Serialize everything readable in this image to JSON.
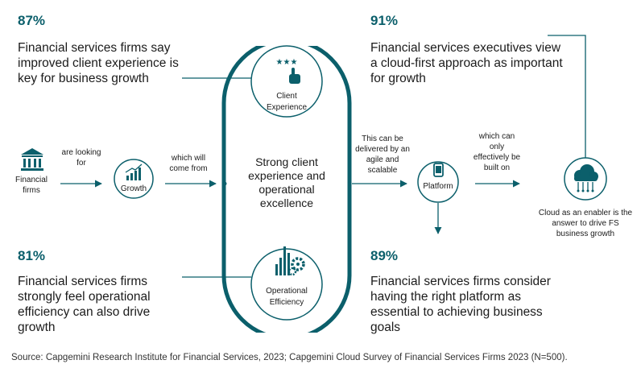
{
  "colors": {
    "accent": "#0b5f6b",
    "line": "#0b5f6b",
    "text": "#1b1b1b"
  },
  "stats": {
    "top_left": {
      "percent": "87%",
      "text": "Financial services firms say improved client experience is key for business growth"
    },
    "top_right": {
      "percent": "91%",
      "text": "Financial services executives view a cloud-first approach as important for growth"
    },
    "bottom_left": {
      "percent": "81%",
      "text": "Financial services firms strongly feel operational efficiency can also drive growth"
    },
    "bottom_right": {
      "percent": "89%",
      "text": "Financial services firms consider having the right platform as essential to achieving business goals"
    }
  },
  "flow": {
    "start_label": "Financial firms",
    "start_icon": "bank-icon",
    "connector_1": "are looking for",
    "growth_label": "Growth",
    "growth_icon": "growth-chart-icon",
    "connector_2": "which will come from",
    "center_text": "Strong client experience and operational excellence",
    "client_experience_label": "Client Experience",
    "client_experience_icon": "star-rating-hand-icon",
    "operational_efficiency_label": "Operational Efficiency",
    "operational_efficiency_icon": "gears-chart-icon",
    "connector_3": "This can be delivered by an agile and scalable",
    "platform_label": "Platform",
    "platform_icon": "mobile-device-icon",
    "connector_4": "which can only effectively be built on",
    "cloud_icon": "cloud-icon",
    "cloud_text": "Cloud as an enabler is the answer to drive FS business growth"
  },
  "source": "Source: Capgemini Research Institute for Financial Services, 2023; Capgemini Cloud Survey of Financial Services Firms 2023 (N=500)."
}
